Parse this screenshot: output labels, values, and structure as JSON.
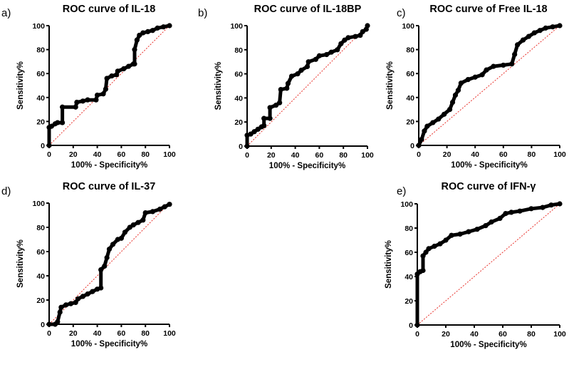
{
  "chart_data": [
    {
      "type": "line",
      "panel_label": "a)",
      "title": "ROC curve of IL-18",
      "xlabel": "100% - Specificity%",
      "ylabel": "Sensitivity%",
      "xlim": [
        0,
        100
      ],
      "ylim": [
        0,
        100
      ],
      "xticks": [
        0,
        20,
        40,
        60,
        80,
        100
      ],
      "yticks": [
        0,
        20,
        40,
        60,
        80,
        100
      ],
      "reference_line": [
        [
          0,
          0
        ],
        [
          100,
          100
        ]
      ],
      "points": [
        [
          0,
          0
        ],
        [
          0,
          15
        ],
        [
          2,
          16
        ],
        [
          5,
          18
        ],
        [
          7,
          19
        ],
        [
          11,
          19
        ],
        [
          11,
          32
        ],
        [
          22,
          32
        ],
        [
          23,
          36
        ],
        [
          28,
          37
        ],
        [
          32,
          38
        ],
        [
          39,
          38
        ],
        [
          40,
          42
        ],
        [
          45,
          43
        ],
        [
          47,
          47
        ],
        [
          48,
          56
        ],
        [
          52,
          58
        ],
        [
          56,
          59
        ],
        [
          57,
          62
        ],
        [
          62,
          64
        ],
        [
          66,
          66
        ],
        [
          70,
          68
        ],
        [
          71,
          68
        ],
        [
          71,
          80
        ],
        [
          73,
          88
        ],
        [
          75,
          92
        ],
        [
          78,
          94
        ],
        [
          82,
          95
        ],
        [
          86,
          96
        ],
        [
          90,
          98
        ],
        [
          95,
          99
        ],
        [
          100,
          100
        ]
      ]
    },
    {
      "type": "line",
      "panel_label": "b)",
      "title": "ROC curve of IL-18BP",
      "xlabel": "100% - Specificity%",
      "ylabel": "Sensitivity%",
      "xlim": [
        0,
        100
      ],
      "ylim": [
        0,
        100
      ],
      "xticks": [
        0,
        20,
        40,
        60,
        80,
        100
      ],
      "yticks": [
        0,
        20,
        40,
        60,
        80,
        100
      ],
      "reference_line": [
        [
          0,
          0
        ],
        [
          100,
          100
        ]
      ],
      "points": [
        [
          0,
          0
        ],
        [
          0,
          9
        ],
        [
          3,
          10
        ],
        [
          6,
          12
        ],
        [
          9,
          14
        ],
        [
          12,
          16
        ],
        [
          14,
          17
        ],
        [
          14,
          23
        ],
        [
          19,
          23
        ],
        [
          19,
          32
        ],
        [
          24,
          34
        ],
        [
          27,
          36
        ],
        [
          28,
          47
        ],
        [
          33,
          48
        ],
        [
          34,
          52
        ],
        [
          37,
          58
        ],
        [
          42,
          60
        ],
        [
          45,
          63
        ],
        [
          50,
          66
        ],
        [
          51,
          70
        ],
        [
          57,
          72
        ],
        [
          60,
          75
        ],
        [
          66,
          76
        ],
        [
          70,
          78
        ],
        [
          75,
          80
        ],
        [
          78,
          85
        ],
        [
          81,
          88
        ],
        [
          84,
          90
        ],
        [
          90,
          91
        ],
        [
          94,
          92
        ],
        [
          96,
          95
        ],
        [
          99,
          97
        ],
        [
          100,
          100
        ]
      ]
    },
    {
      "type": "line",
      "panel_label": "c)",
      "title": "ROC curve of Free IL-18",
      "xlabel": "100% - Specificity%",
      "ylabel": "Sensitivity%",
      "xlim": [
        0,
        100
      ],
      "ylim": [
        0,
        100
      ],
      "xticks": [
        0,
        20,
        40,
        60,
        80,
        100
      ],
      "yticks": [
        0,
        20,
        40,
        60,
        80,
        100
      ],
      "reference_line": [
        [
          0,
          0
        ],
        [
          100,
          100
        ]
      ],
      "points": [
        [
          0,
          0
        ],
        [
          2,
          5
        ],
        [
          4,
          12
        ],
        [
          6,
          16
        ],
        [
          10,
          19
        ],
        [
          14,
          22
        ],
        [
          18,
          26
        ],
        [
          22,
          30
        ],
        [
          24,
          36
        ],
        [
          26,
          42
        ],
        [
          28,
          46
        ],
        [
          30,
          52
        ],
        [
          35,
          55
        ],
        [
          40,
          57
        ],
        [
          45,
          59
        ],
        [
          48,
          63
        ],
        [
          53,
          66
        ],
        [
          60,
          67
        ],
        [
          66,
          68
        ],
        [
          68,
          76
        ],
        [
          70,
          84
        ],
        [
          74,
          88
        ],
        [
          78,
          91
        ],
        [
          82,
          94
        ],
        [
          86,
          96
        ],
        [
          90,
          98
        ],
        [
          95,
          99
        ],
        [
          100,
          100
        ]
      ]
    },
    {
      "type": "line",
      "panel_label": "d)",
      "title": "ROC curve of IL-37",
      "xlabel": "100% - Specificity%",
      "ylabel": "Sensitivity%",
      "xlim": [
        0,
        100
      ],
      "ylim": [
        0,
        100
      ],
      "xticks": [
        0,
        20,
        40,
        60,
        80,
        100
      ],
      "yticks": [
        0,
        20,
        40,
        60,
        80,
        100
      ],
      "reference_line": [
        [
          0,
          0
        ],
        [
          100,
          100
        ]
      ],
      "points": [
        [
          0,
          0
        ],
        [
          5,
          0
        ],
        [
          7,
          2
        ],
        [
          9,
          10
        ],
        [
          10,
          14
        ],
        [
          14,
          16
        ],
        [
          18,
          17
        ],
        [
          22,
          18
        ],
        [
          24,
          21
        ],
        [
          28,
          23
        ],
        [
          32,
          25
        ],
        [
          36,
          27
        ],
        [
          40,
          29
        ],
        [
          43,
          30
        ],
        [
          43,
          45
        ],
        [
          46,
          48
        ],
        [
          48,
          55
        ],
        [
          50,
          62
        ],
        [
          53,
          66
        ],
        [
          57,
          70
        ],
        [
          60,
          71
        ],
        [
          63,
          76
        ],
        [
          67,
          80
        ],
        [
          70,
          82
        ],
        [
          74,
          84
        ],
        [
          78,
          86
        ],
        [
          80,
          92
        ],
        [
          86,
          93
        ],
        [
          92,
          95
        ],
        [
          96,
          97
        ],
        [
          100,
          99
        ]
      ]
    },
    {
      "type": "line",
      "panel_label": "e)",
      "title": "ROC curve of IFN-γ",
      "xlabel": "100% - Specificity%",
      "ylabel": "Sensitivity%",
      "xlim": [
        0,
        100
      ],
      "ylim": [
        0,
        100
      ],
      "xticks": [
        0,
        20,
        40,
        60,
        80,
        100
      ],
      "yticks": [
        0,
        20,
        40,
        60,
        80,
        100
      ],
      "reference_line": [
        [
          0,
          0
        ],
        [
          100,
          100
        ]
      ],
      "points": [
        [
          0,
          0
        ],
        [
          0,
          42
        ],
        [
          2,
          44
        ],
        [
          4,
          45
        ],
        [
          4,
          57
        ],
        [
          6,
          60
        ],
        [
          8,
          63
        ],
        [
          12,
          65
        ],
        [
          16,
          67
        ],
        [
          20,
          70
        ],
        [
          24,
          74
        ],
        [
          30,
          75
        ],
        [
          36,
          77
        ],
        [
          42,
          79
        ],
        [
          48,
          82
        ],
        [
          52,
          85
        ],
        [
          58,
          88
        ],
        [
          62,
          92
        ],
        [
          66,
          93
        ],
        [
          72,
          94
        ],
        [
          80,
          96
        ],
        [
          88,
          97
        ],
        [
          94,
          99
        ],
        [
          100,
          100
        ]
      ]
    }
  ],
  "colors": {
    "curve": "#000000",
    "reference": "#e8302a"
  }
}
